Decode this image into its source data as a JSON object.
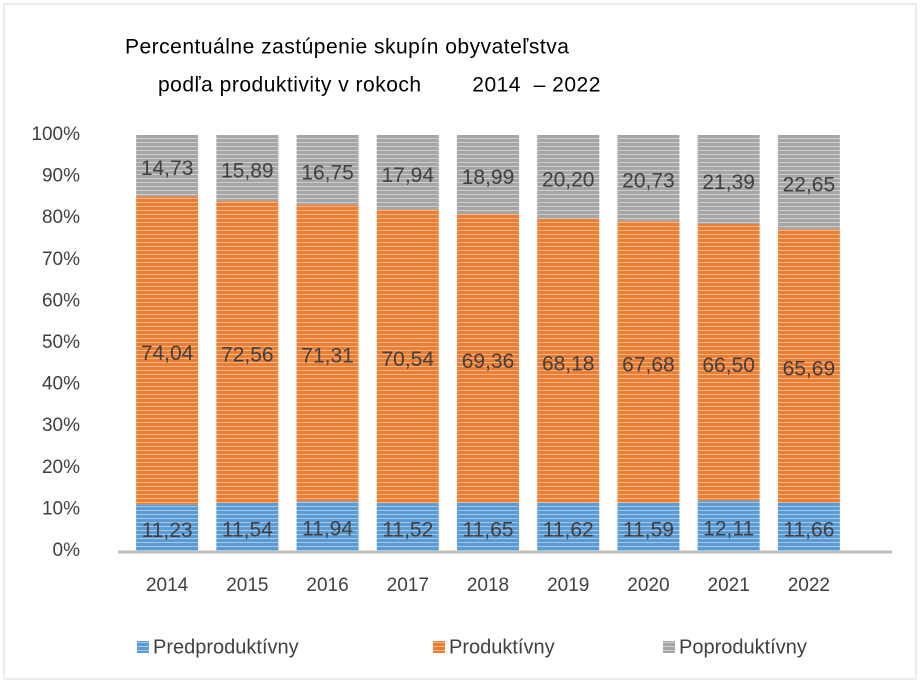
{
  "chart_data": {
    "type": "stacked_bar",
    "title": [
      "Percentuálne zastúpenie skupín obyvateľstva",
      "podľa produktivity v rokoch        2014  – 2022"
    ],
    "categories": [
      "2014",
      "2015",
      "2016",
      "2017",
      "2018",
      "2019",
      "2020",
      "2021",
      "2022"
    ],
    "series": [
      {
        "name": "Predproduktívny",
        "color": "#5b9bd5",
        "values": [
          11.23,
          11.54,
          11.94,
          11.52,
          11.65,
          11.62,
          11.59,
          12.11,
          11.66
        ],
        "value_labels": [
          "11,23",
          "11,54",
          "11,94",
          "11,52",
          "11,65",
          "11,62",
          "11,59",
          "12,11",
          "11,66"
        ]
      },
      {
        "name": "Produktívny",
        "color": "#ed7d31",
        "values": [
          74.04,
          72.56,
          71.31,
          70.54,
          69.36,
          68.18,
          67.68,
          66.5,
          65.69
        ],
        "value_labels": [
          "74,04",
          "72,56",
          "71,31",
          "70,54",
          "69,36",
          "68,18",
          "67,68",
          "66,50",
          "65,69"
        ]
      },
      {
        "name": "Poproduktívny",
        "color": "#a5a5a5",
        "values": [
          14.73,
          15.89,
          16.75,
          17.94,
          18.99,
          20.2,
          20.73,
          21.39,
          22.65
        ],
        "value_labels": [
          "14,73",
          "15,89",
          "16,75",
          "17,94",
          "18,99",
          "20,20",
          "20,73",
          "21,39",
          "22,65"
        ]
      }
    ],
    "ylim": [
      0,
      100
    ],
    "yticks": [
      {
        "value": 0,
        "label": "0%"
      },
      {
        "value": 10,
        "label": "10%"
      },
      {
        "value": 20,
        "label": "20%"
      },
      {
        "value": 30,
        "label": "30%"
      },
      {
        "value": 40,
        "label": "40%"
      },
      {
        "value": 50,
        "label": "50%"
      },
      {
        "value": 60,
        "label": "60%"
      },
      {
        "value": 70,
        "label": "70%"
      },
      {
        "value": 80,
        "label": "80%"
      },
      {
        "value": 90,
        "label": "90%"
      },
      {
        "value": 100,
        "label": "100%"
      }
    ],
    "legend": "bottom"
  }
}
